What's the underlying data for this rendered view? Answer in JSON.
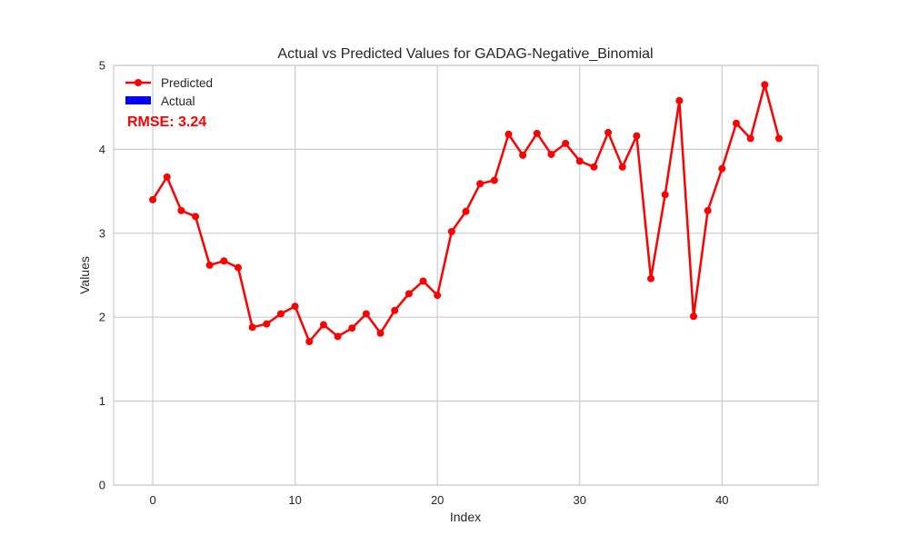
{
  "colors": {
    "predicted": "#ff0000",
    "actual": "#0000ff",
    "rmse_text": "#ff0000",
    "grid": "#cccccc",
    "frame": "#cccccc"
  },
  "chart_data": {
    "type": "line",
    "title": "Actual vs Predicted Values for GADAG-Negative_Binomial",
    "xlabel": "Index",
    "ylabel": "Values",
    "xlim": [
      -2.75,
      46.75
    ],
    "ylim": [
      0,
      5
    ],
    "xticks": [
      0,
      10,
      20,
      30,
      40
    ],
    "yticks": [
      0,
      1,
      2,
      3,
      4,
      5
    ],
    "grid": true,
    "legend_position": "top-left",
    "legend": [
      {
        "label": "Predicted",
        "style": "line-marker",
        "color": "#ff0000"
      },
      {
        "label": "Actual",
        "style": "patch",
        "color": "#0000ff"
      }
    ],
    "annotation": "RMSE: 3.24",
    "series": [
      {
        "name": "Predicted",
        "color": "#ff0000",
        "x": [
          0,
          1,
          2,
          3,
          4,
          5,
          6,
          7,
          8,
          9,
          10,
          11,
          12,
          13,
          14,
          15,
          16,
          17,
          18,
          19,
          20,
          21,
          22,
          23,
          24,
          25,
          26,
          27,
          28,
          29,
          30,
          31,
          32,
          33,
          34,
          35,
          36,
          37,
          38,
          39,
          40,
          41,
          42,
          43,
          44
        ],
        "y": [
          3.4,
          3.67,
          3.27,
          3.2,
          2.62,
          2.67,
          2.59,
          1.88,
          1.92,
          2.04,
          2.13,
          1.71,
          1.91,
          1.77,
          1.87,
          2.04,
          1.81,
          2.08,
          2.28,
          2.43,
          2.26,
          3.02,
          3.26,
          3.59,
          3.63,
          4.18,
          3.93,
          4.19,
          3.94,
          4.07,
          3.86,
          3.79,
          4.2,
          3.79,
          4.16,
          2.46,
          3.46,
          4.58,
          2.01,
          3.27,
          3.77,
          4.31,
          4.13,
          4.77,
          4.13
        ]
      },
      {
        "name": "Actual",
        "color": "#0000ff",
        "x": [],
        "y": []
      }
    ]
  }
}
